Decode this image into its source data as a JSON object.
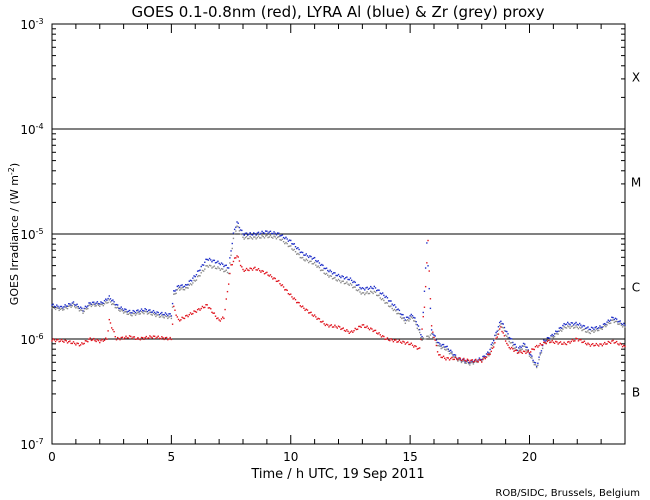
{
  "chart_data": {
    "type": "line",
    "title": "GOES 0.1-0.8nm (red), LYRA Al (blue) & Zr (grey) proxy",
    "xlabel": "Time / h UTC, 19 Sep 2011",
    "ylabel": "GOES Irradiance / (W m",
    "ylabel_exp": "-2",
    "ylabel_close": ")",
    "credit": "ROB/SIDC, Brussels, Belgium",
    "xlim": [
      0,
      24
    ],
    "ylim_log10": [
      -7,
      -3
    ],
    "x_ticks": [
      {
        "value": 0,
        "label": "0"
      },
      {
        "value": 5,
        "label": "5"
      },
      {
        "value": 10,
        "label": "10"
      },
      {
        "value": 15,
        "label": "15"
      },
      {
        "value": 20,
        "label": "20"
      }
    ],
    "y_ticks": [
      {
        "exp": -3,
        "base": "10",
        "sup": "-3"
      },
      {
        "exp": -4,
        "base": "10",
        "sup": "-4"
      },
      {
        "exp": -5,
        "base": "10",
        "sup": "-5"
      },
      {
        "exp": -6,
        "base": "10",
        "sup": "-6"
      },
      {
        "exp": -7,
        "base": "10",
        "sup": "-7"
      }
    ],
    "flare_classes": [
      {
        "label": "X",
        "center_exp": -3.5
      },
      {
        "label": "M",
        "center_exp": -4.5
      },
      {
        "label": "C",
        "center_exp": -5.5
      },
      {
        "label": "B",
        "center_exp": -6.5
      }
    ],
    "class_lines_exp": [
      -4,
      -5,
      -6
    ],
    "series": [
      {
        "name": "LYRA Al proxy",
        "color": "#1f2fc8",
        "points": [
          [
            0,
            2.1e-06
          ],
          [
            0.4,
            2e-06
          ],
          [
            0.9,
            2.2e-06
          ],
          [
            1.3,
            1.9e-06
          ],
          [
            1.6,
            2.2e-06
          ],
          [
            2.1,
            2.2e-06
          ],
          [
            2.4,
            2.5e-06
          ],
          [
            2.8,
            2e-06
          ],
          [
            3.3,
            1.8e-06
          ],
          [
            3.9,
            1.9e-06
          ],
          [
            4.5,
            1.75e-06
          ],
          [
            5.0,
            1.7e-06
          ],
          [
            5.1,
            2.8e-06
          ],
          [
            5.3,
            3.2e-06
          ],
          [
            5.6,
            3.2e-06
          ],
          [
            6.0,
            4e-06
          ],
          [
            6.5,
            5.8e-06
          ],
          [
            7.0,
            5.3e-06
          ],
          [
            7.4,
            4.8e-06
          ],
          [
            7.6,
            1e-05
          ],
          [
            7.75,
            1.3e-05
          ],
          [
            8.0,
            1e-05
          ],
          [
            8.5,
            1e-05
          ],
          [
            9.0,
            1.05e-05
          ],
          [
            9.5,
            1e-05
          ],
          [
            10.0,
            8.5e-06
          ],
          [
            10.5,
            6.5e-06
          ],
          [
            11.0,
            5.8e-06
          ],
          [
            11.5,
            4.6e-06
          ],
          [
            12.0,
            4e-06
          ],
          [
            12.5,
            3.7e-06
          ],
          [
            13.0,
            3e-06
          ],
          [
            13.5,
            3.1e-06
          ],
          [
            14.0,
            2.5e-06
          ],
          [
            14.5,
            1.9e-06
          ],
          [
            14.8,
            1.55e-06
          ],
          [
            15.1,
            1.7e-06
          ],
          [
            15.3,
            1.4e-06
          ],
          [
            15.5,
            1.05e-06
          ],
          [
            15.7,
            8e-06
          ],
          [
            15.9,
            1.2e-06
          ],
          [
            16.2,
            9e-07
          ],
          [
            16.5,
            8.5e-07
          ],
          [
            17.0,
            6.5e-07
          ],
          [
            17.5,
            6e-07
          ],
          [
            18.0,
            6.5e-07
          ],
          [
            18.3,
            7.5e-07
          ],
          [
            18.8,
            1.5e-06
          ],
          [
            19.1,
            1.1e-06
          ],
          [
            19.5,
            8e-07
          ],
          [
            19.8,
            9e-07
          ],
          [
            20.3,
            5.5e-07
          ],
          [
            20.6,
            9.5e-07
          ],
          [
            21.0,
            1.1e-06
          ],
          [
            21.5,
            1.4e-06
          ],
          [
            22.0,
            1.4e-06
          ],
          [
            22.5,
            1.25e-06
          ],
          [
            23.0,
            1.3e-06
          ],
          [
            23.5,
            1.6e-06
          ],
          [
            24,
            1.35e-06
          ]
        ]
      },
      {
        "name": "LYRA Zr proxy",
        "color": "#8c8c8c",
        "points": [
          [
            0,
            2e-06
          ],
          [
            0.4,
            1.9e-06
          ],
          [
            0.9,
            2.1e-06
          ],
          [
            1.3,
            1.8e-06
          ],
          [
            1.6,
            2.1e-06
          ],
          [
            2.1,
            2.1e-06
          ],
          [
            2.4,
            2.3e-06
          ],
          [
            2.8,
            1.9e-06
          ],
          [
            3.3,
            1.7e-06
          ],
          [
            3.9,
            1.8e-06
          ],
          [
            4.5,
            1.65e-06
          ],
          [
            5.0,
            1.6e-06
          ],
          [
            5.1,
            2.6e-06
          ],
          [
            5.3,
            3e-06
          ],
          [
            5.6,
            3e-06
          ],
          [
            6.0,
            3.6e-06
          ],
          [
            6.5,
            5e-06
          ],
          [
            7.0,
            4.7e-06
          ],
          [
            7.4,
            4.3e-06
          ],
          [
            7.6,
            9e-06
          ],
          [
            7.75,
            1.2e-05
          ],
          [
            8.0,
            9.2e-06
          ],
          [
            8.5,
            9.2e-06
          ],
          [
            9.0,
            9.5e-06
          ],
          [
            9.5,
            9.2e-06
          ],
          [
            10.0,
            7.5e-06
          ],
          [
            10.5,
            5.8e-06
          ],
          [
            11.0,
            5.2e-06
          ],
          [
            11.5,
            4.1e-06
          ],
          [
            12.0,
            3.6e-06
          ],
          [
            12.5,
            3.3e-06
          ],
          [
            13.0,
            2.7e-06
          ],
          [
            13.5,
            2.8e-06
          ],
          [
            14.0,
            2.2e-06
          ],
          [
            14.5,
            1.75e-06
          ],
          [
            14.8,
            1.45e-06
          ],
          [
            15.1,
            1.6e-06
          ],
          [
            15.3,
            1.3e-06
          ],
          [
            15.5,
            9.8e-07
          ],
          [
            15.9,
            1.1e-06
          ],
          [
            16.2,
            8.5e-07
          ],
          [
            16.5,
            8e-07
          ],
          [
            17.0,
            6.3e-07
          ],
          [
            17.5,
            5.8e-07
          ],
          [
            18.0,
            6.3e-07
          ],
          [
            18.3,
            7e-07
          ],
          [
            18.8,
            1.4e-06
          ],
          [
            19.1,
            1e-06
          ],
          [
            19.5,
            7.5e-07
          ],
          [
            19.8,
            8.5e-07
          ],
          [
            20.3,
            5.3e-07
          ],
          [
            20.6,
            9e-07
          ],
          [
            21.0,
            1.05e-06
          ],
          [
            21.5,
            1.3e-06
          ],
          [
            22.0,
            1.3e-06
          ],
          [
            22.5,
            1.15e-06
          ],
          [
            23.0,
            1.25e-06
          ],
          [
            23.5,
            1.5e-06
          ],
          [
            24,
            1.3e-06
          ]
        ]
      },
      {
        "name": "GOES 0.1-0.8nm",
        "color": "#e0141e",
        "points": [
          [
            0,
            9.8e-07
          ],
          [
            0.6,
            9.5e-07
          ],
          [
            1.2,
            8.8e-07
          ],
          [
            1.6,
            1e-06
          ],
          [
            2.0,
            9.5e-07
          ],
          [
            2.3,
            1e-06
          ],
          [
            2.4,
            1.5e-06
          ],
          [
            2.7,
            1e-06
          ],
          [
            3.3,
            1.05e-06
          ],
          [
            3.6,
            1e-06
          ],
          [
            4.2,
            1.05e-06
          ],
          [
            5.0,
            1e-06
          ],
          [
            5.1,
            2e-06
          ],
          [
            5.3,
            1.5e-06
          ],
          [
            6.5,
            2.1e-06
          ],
          [
            7.0,
            1.5e-06
          ],
          [
            7.2,
            1.6e-06
          ],
          [
            7.5,
            5e-06
          ],
          [
            7.75,
            6.3e-06
          ],
          [
            8.0,
            4.5e-06
          ],
          [
            8.5,
            4.7e-06
          ],
          [
            9.0,
            4.2e-06
          ],
          [
            9.5,
            3.5e-06
          ],
          [
            10.0,
            2.6e-06
          ],
          [
            10.5,
            2e-06
          ],
          [
            11.0,
            1.65e-06
          ],
          [
            11.5,
            1.35e-06
          ],
          [
            12.0,
            1.3e-06
          ],
          [
            12.5,
            1.15e-06
          ],
          [
            13.0,
            1.35e-06
          ],
          [
            13.5,
            1.2e-06
          ],
          [
            14.0,
            1e-06
          ],
          [
            14.5,
            9.5e-07
          ],
          [
            15.0,
            9e-07
          ],
          [
            15.4,
            8e-07
          ],
          [
            15.6,
            2e-06
          ],
          [
            15.75,
            8.5e-06
          ],
          [
            15.9,
            1.3e-06
          ],
          [
            16.2,
            7e-07
          ],
          [
            16.5,
            6.5e-07
          ],
          [
            17.0,
            6.5e-07
          ],
          [
            17.5,
            6.2e-07
          ],
          [
            18.0,
            6.2e-07
          ],
          [
            18.4,
            7.5e-07
          ],
          [
            18.8,
            1.3e-06
          ],
          [
            19.1,
            8.5e-07
          ],
          [
            19.5,
            7.5e-07
          ],
          [
            20.0,
            7.5e-07
          ],
          [
            20.3,
            8.5e-07
          ],
          [
            20.8,
            9.5e-07
          ],
          [
            21.5,
            9e-07
          ],
          [
            22.0,
            1e-06
          ],
          [
            22.5,
            8.8e-07
          ],
          [
            23.0,
            8.8e-07
          ],
          [
            23.5,
            9.5e-07
          ],
          [
            24,
            8.5e-07
          ]
        ]
      }
    ]
  }
}
